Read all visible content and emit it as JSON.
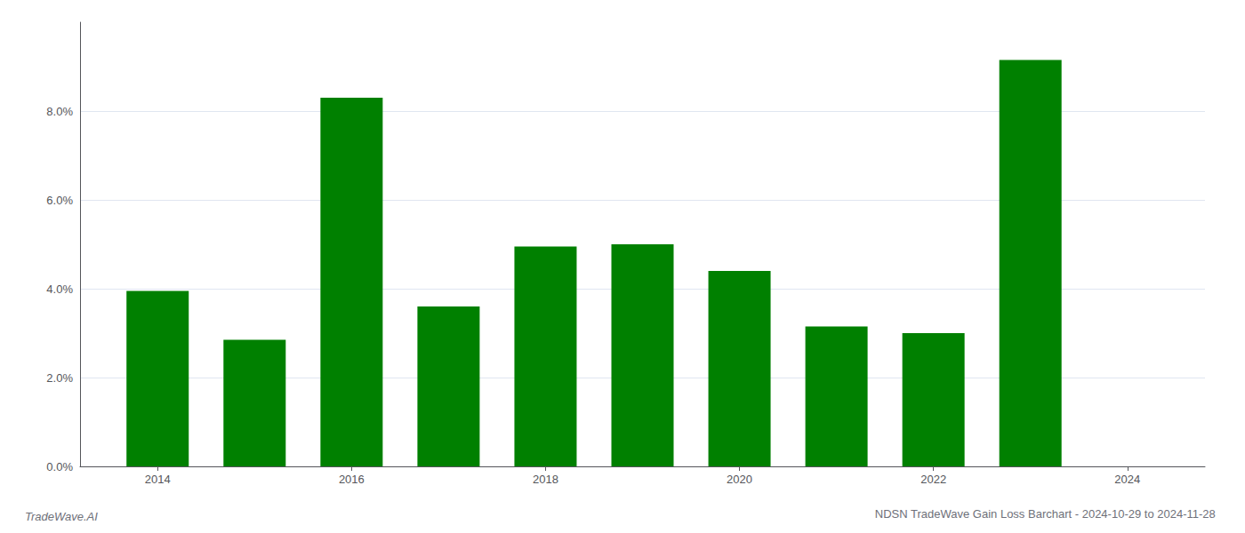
{
  "chart_data": {
    "type": "bar",
    "title": "NDSN TradeWave Gain Loss Barchart - 2024-10-29 to 2024-11-28",
    "annotations": [
      "TradeWave.AI"
    ],
    "x": [
      2014,
      2015,
      2016,
      2017,
      2018,
      2019,
      2020,
      2021,
      2022,
      2023
    ],
    "values": [
      0.0395,
      0.0285,
      0.083,
      0.036,
      0.0495,
      0.05,
      0.044,
      0.0315,
      0.03,
      0.0915
    ],
    "color": "#008000",
    "xlim": [
      2013.2,
      2024.8
    ],
    "xticks": [
      2014,
      2016,
      2018,
      2020,
      2022,
      2024
    ],
    "ylim": [
      0,
      0.1
    ],
    "yticks": [
      {
        "value": 0.0,
        "label": "0.0%"
      },
      {
        "value": 0.02,
        "label": "2.0%"
      },
      {
        "value": 0.04,
        "label": "4.0%"
      },
      {
        "value": 0.06,
        "label": "6.0%"
      },
      {
        "value": 0.08,
        "label": "8.0%"
      }
    ],
    "grid": true
  }
}
